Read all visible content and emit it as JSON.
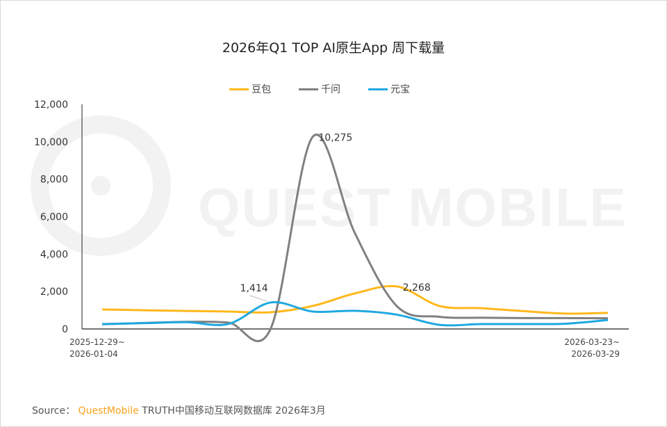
{
  "source": {
    "label": "Source：",
    "brand": "QuestMobile",
    "text": "TRUTH中国移动互联网数据库 2026年3月"
  },
  "watermark": "QUEST MOBILE",
  "chart_data": {
    "type": "line",
    "title": "2026年Q1 TOP AI原生App 周下载量",
    "x_labels_shown": [
      {
        "index": 0,
        "lines": [
          "2025-12-29~",
          "2026-01-04"
        ]
      },
      {
        "index": 12,
        "lines": [
          "2026-03-23~",
          "2026-03-29"
        ]
      }
    ],
    "num_weeks": 13,
    "ylim": [
      0,
      12000
    ],
    "yticks": [
      0,
      2000,
      4000,
      6000,
      8000,
      10000,
      12000
    ],
    "ytick_labels": [
      "0",
      "2,000",
      "4,000",
      "6,000",
      "8,000",
      "10,000",
      "12,000"
    ],
    "grid": false,
    "legend": "top",
    "series": [
      {
        "name": "豆包",
        "color": "#FFB81C",
        "values": [
          1040,
          1000,
          960,
          930,
          890,
          1230,
          1900,
          2268,
          1230,
          1110,
          950,
          820,
          860
        ]
      },
      {
        "name": "千问",
        "color": "#808080",
        "values": [
          250,
          320,
          380,
          340,
          20,
          10275,
          5100,
          1200,
          650,
          600,
          580,
          580,
          570
        ]
      },
      {
        "name": "元宝",
        "color": "#1FA8E0",
        "values": [
          260,
          310,
          360,
          270,
          1414,
          930,
          970,
          760,
          220,
          260,
          260,
          280,
          480
        ]
      }
    ],
    "data_labels": [
      {
        "series": 2,
        "index": 4,
        "text": "1,414"
      },
      {
        "series": 1,
        "index": 5,
        "text": "10,275"
      },
      {
        "series": 0,
        "index": 7,
        "text": "2,268"
      }
    ]
  }
}
